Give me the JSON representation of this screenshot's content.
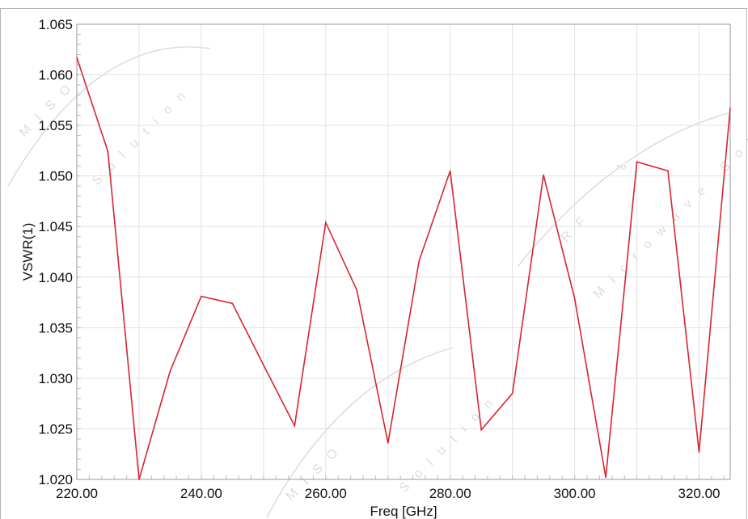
{
  "colors": {
    "series": "#d7262e",
    "grid": "#e2e2e2",
    "frame": "#b4b4b4",
    "watermark": "#d9d9d9"
  },
  "watermark": {
    "brand_primary": "MISO",
    "brand_secondary": "RF",
    "trademark": "™",
    "tagline_a": "Solution",
    "tagline_b": "Microwave Solution"
  },
  "chart_data": {
    "type": "line",
    "title": "",
    "xlabel": "Freq [GHz]",
    "ylabel": "VSWR(1)",
    "xlim": [
      220,
      325
    ],
    "ylim": [
      1.02,
      1.065
    ],
    "grid": true,
    "legend": "none",
    "x_ticks": [
      220,
      240,
      260,
      280,
      300,
      320
    ],
    "x_tick_labels": [
      "220.00",
      "240.00",
      "260.00",
      "280.00",
      "300.00",
      "320.00"
    ],
    "y_ticks": [
      1.02,
      1.025,
      1.03,
      1.035,
      1.04,
      1.045,
      1.05,
      1.055,
      1.06,
      1.065
    ],
    "y_tick_labels": [
      "1.020",
      "1.025",
      "1.030",
      "1.035",
      "1.040",
      "1.045",
      "1.050",
      "1.055",
      "1.060",
      "1.065"
    ],
    "series": [
      {
        "color": "#d7262e",
        "x": [
          220,
          225,
          230,
          235,
          240,
          245,
          250,
          255,
          260,
          265,
          270,
          275,
          280,
          285,
          290,
          295,
          300,
          305,
          310,
          315,
          320,
          325
        ],
        "y": [
          1.0617,
          1.0524,
          1.02,
          1.0307,
          1.0381,
          1.0374,
          1.0313,
          1.0253,
          1.0454,
          1.0387,
          1.0236,
          1.0416,
          1.0505,
          1.0249,
          1.0285,
          1.0501,
          1.0379,
          1.0202,
          1.0514,
          1.0505,
          1.0227,
          1.0567
        ]
      }
    ]
  }
}
